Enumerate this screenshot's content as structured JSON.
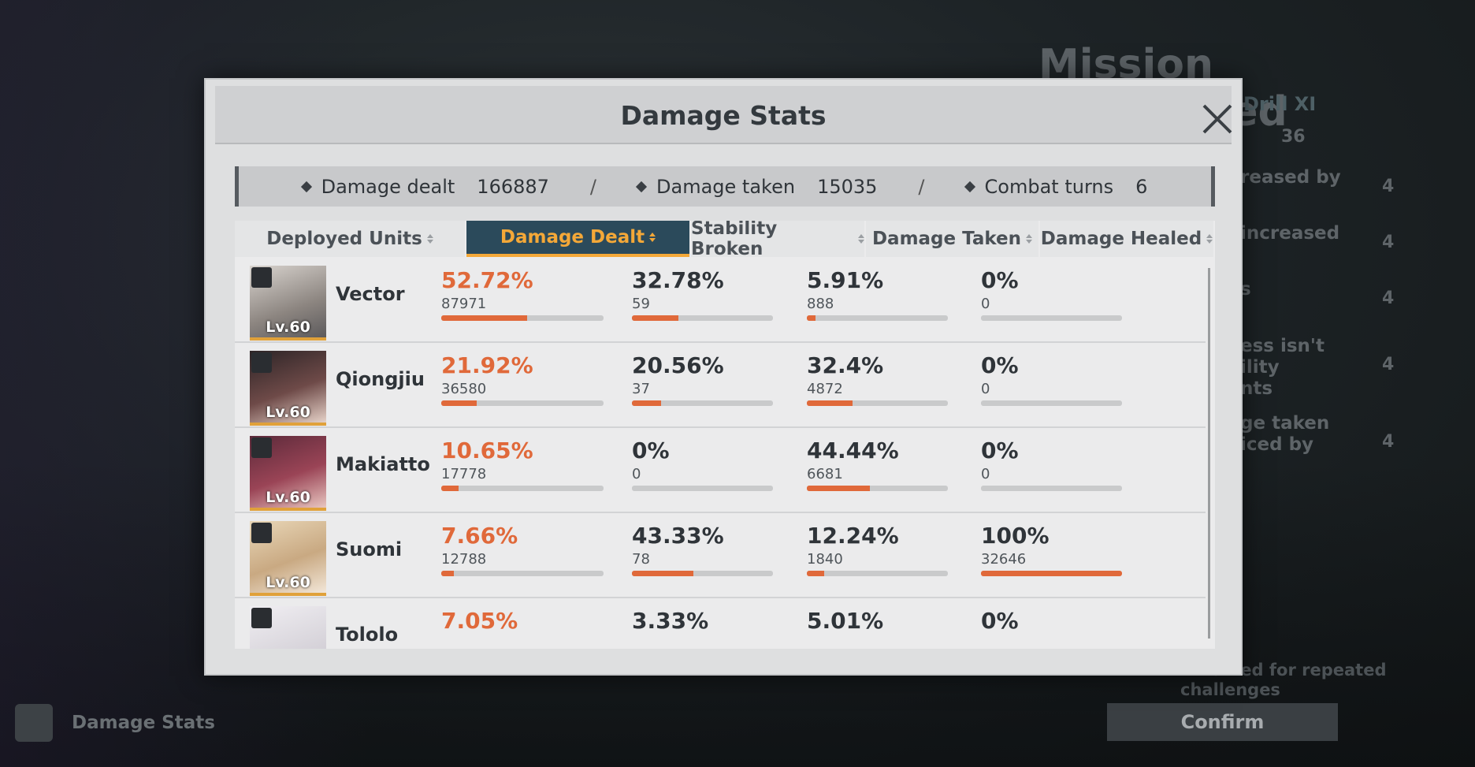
{
  "background": {
    "title": "Mission Completed",
    "subtitle": "Drill XI",
    "count": "36",
    "effects": [
      {
        "lines": [
          "reased by"
        ],
        "value": "4"
      },
      {
        "lines": [
          "increased"
        ],
        "value": "4"
      },
      {
        "lines": [
          "s"
        ],
        "value": "4"
      },
      {
        "lines": [
          "ess isn't",
          "ility",
          "nts"
        ],
        "value": "4"
      },
      {
        "lines": [
          "ge taken",
          "iced by"
        ],
        "value": "4"
      }
    ],
    "note": [
      "ained for repeated",
      "challenges"
    ],
    "confirm": "Confirm",
    "footer_button": "Damage Stats"
  },
  "dialog": {
    "title": "Damage Stats",
    "summary": [
      {
        "label": "Damage dealt",
        "value": 166887
      },
      {
        "label": "Damage taken",
        "value": 15035
      },
      {
        "label": "Combat turns",
        "value": 6
      }
    ],
    "separator": "/",
    "columns": [
      "Deployed Units",
      "Damage Dealt",
      "Stability Broken",
      "Damage Taken",
      "Damage Healed"
    ],
    "rows": [
      {
        "name": "Vector",
        "level": "Lv.60",
        "dealt": {
          "pct": {
            "value": 52.72,
            "label": "52.72%"
          },
          "amount": 87971
        },
        "stability": {
          "pct": {
            "value": 32.78,
            "label": "32.78%"
          },
          "amount": 59
        },
        "taken": {
          "pct": {
            "value": 5.91,
            "label": "5.91%"
          },
          "amount": 888
        },
        "healed": {
          "pct": {
            "value": 0,
            "label": "0%"
          },
          "amount": 0
        }
      },
      {
        "name": "Qiongjiu",
        "level": "Lv.60",
        "dealt": {
          "pct": {
            "value": 21.92,
            "label": "21.92%"
          },
          "amount": 36580
        },
        "stability": {
          "pct": {
            "value": 20.56,
            "label": "20.56%"
          },
          "amount": 37
        },
        "taken": {
          "pct": {
            "value": 32.4,
            "label": "32.4%"
          },
          "amount": 4872
        },
        "healed": {
          "pct": {
            "value": 0,
            "label": "0%"
          },
          "amount": 0
        }
      },
      {
        "name": "Makiatto",
        "level": "Lv.60",
        "dealt": {
          "pct": {
            "value": 10.65,
            "label": "10.65%"
          },
          "amount": 17778
        },
        "stability": {
          "pct": {
            "value": 0,
            "label": "0%"
          },
          "amount": 0
        },
        "taken": {
          "pct": {
            "value": 44.44,
            "label": "44.44%"
          },
          "amount": 6681
        },
        "healed": {
          "pct": {
            "value": 0,
            "label": "0%"
          },
          "amount": 0
        }
      },
      {
        "name": "Suomi",
        "level": "Lv.60",
        "dealt": {
          "pct": {
            "value": 7.66,
            "label": "7.66%"
          },
          "amount": 12788
        },
        "stability": {
          "pct": {
            "value": 43.33,
            "label": "43.33%"
          },
          "amount": 78
        },
        "taken": {
          "pct": {
            "value": 12.24,
            "label": "12.24%"
          },
          "amount": 1840
        },
        "healed": {
          "pct": {
            "value": 100,
            "label": "100%"
          },
          "amount": 32646
        }
      },
      {
        "name": "Tololo",
        "dealt": {
          "pct": {
            "value": 7.05,
            "label": "7.05%"
          }
        },
        "stability": {
          "pct": {
            "value": 3.33,
            "label": "3.33%"
          }
        },
        "taken": {
          "pct": {
            "value": 5.01,
            "label": "5.01%"
          }
        },
        "healed": {
          "pct": {
            "value": 0,
            "label": "0%"
          }
        }
      }
    ]
  }
}
